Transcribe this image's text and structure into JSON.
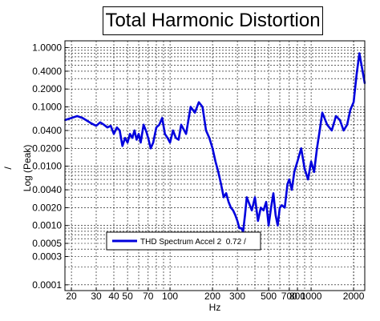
{
  "chart_data": {
    "type": "line",
    "title": "Total Harmonic Distortion",
    "xlabel": "Hz",
    "ylabel": "Log (Peak)",
    "ylabel_unit": "/",
    "x_scale": "log",
    "y_scale": "log",
    "xlim": [
      18,
      2400
    ],
    "ylim": [
      8e-05,
      1.3
    ],
    "grid": true,
    "legend_position": "lower-center",
    "x_ticks": [
      "20",
      "30",
      "40",
      "50",
      "70",
      "100",
      "200",
      "300",
      "500",
      "700",
      "800",
      "1000",
      "2000"
    ],
    "y_ticks": [
      "1.0000",
      "0.4000",
      "0.2000",
      "0.1000",
      "0.0400",
      "0.0200",
      "0.0100",
      "0.0040",
      "0.0020",
      "0.0010",
      "0.0005",
      "0.0003",
      "0.0001"
    ],
    "series": [
      {
        "name": "THD Spectrum Accel 2  0.72 /",
        "color": "#0000dd",
        "x": [
          18,
          20,
          22,
          24,
          26,
          28,
          30,
          32,
          34,
          36,
          38,
          40,
          42,
          44,
          46,
          48,
          50,
          52,
          54,
          56,
          58,
          60,
          62,
          65,
          68,
          70,
          73,
          76,
          80,
          84,
          88,
          92,
          96,
          100,
          105,
          110,
          115,
          120,
          130,
          140,
          150,
          160,
          170,
          180,
          190,
          200,
          210,
          220,
          230,
          240,
          250,
          260,
          270,
          280,
          290,
          300,
          310,
          320,
          330,
          340,
          350,
          360,
          380,
          400,
          420,
          440,
          460,
          480,
          500,
          520,
          540,
          560,
          580,
          600,
          620,
          650,
          680,
          700,
          730,
          760,
          800,
          850,
          900,
          950,
          1000,
          1050,
          1100,
          1150,
          1200,
          1300,
          1400,
          1500,
          1600,
          1700,
          1800,
          1900,
          2000,
          2100,
          2200,
          2400
        ],
        "y": [
          0.06,
          0.065,
          0.07,
          0.065,
          0.058,
          0.052,
          0.048,
          0.055,
          0.05,
          0.045,
          0.048,
          0.035,
          0.045,
          0.04,
          0.022,
          0.03,
          0.025,
          0.035,
          0.03,
          0.04,
          0.028,
          0.035,
          0.025,
          0.05,
          0.038,
          0.03,
          0.02,
          0.025,
          0.045,
          0.05,
          0.065,
          0.035,
          0.03,
          0.025,
          0.04,
          0.03,
          0.028,
          0.05,
          0.035,
          0.1,
          0.08,
          0.12,
          0.1,
          0.04,
          0.03,
          0.02,
          0.012,
          0.008,
          0.005,
          0.003,
          0.0035,
          0.0025,
          0.002,
          0.0018,
          0.0015,
          0.0012,
          0.0009,
          0.0009,
          0.0008,
          0.0015,
          0.003,
          0.0025,
          0.0018,
          0.003,
          0.0012,
          0.002,
          0.0018,
          0.0025,
          0.001,
          0.002,
          0.0035,
          0.0015,
          0.001,
          0.002,
          0.0022,
          0.002,
          0.005,
          0.006,
          0.004,
          0.008,
          0.012,
          0.02,
          0.009,
          0.006,
          0.012,
          0.008,
          0.02,
          0.04,
          0.08,
          0.05,
          0.04,
          0.07,
          0.06,
          0.04,
          0.05,
          0.09,
          0.12,
          0.35,
          0.8,
          0.25
        ]
      }
    ]
  }
}
